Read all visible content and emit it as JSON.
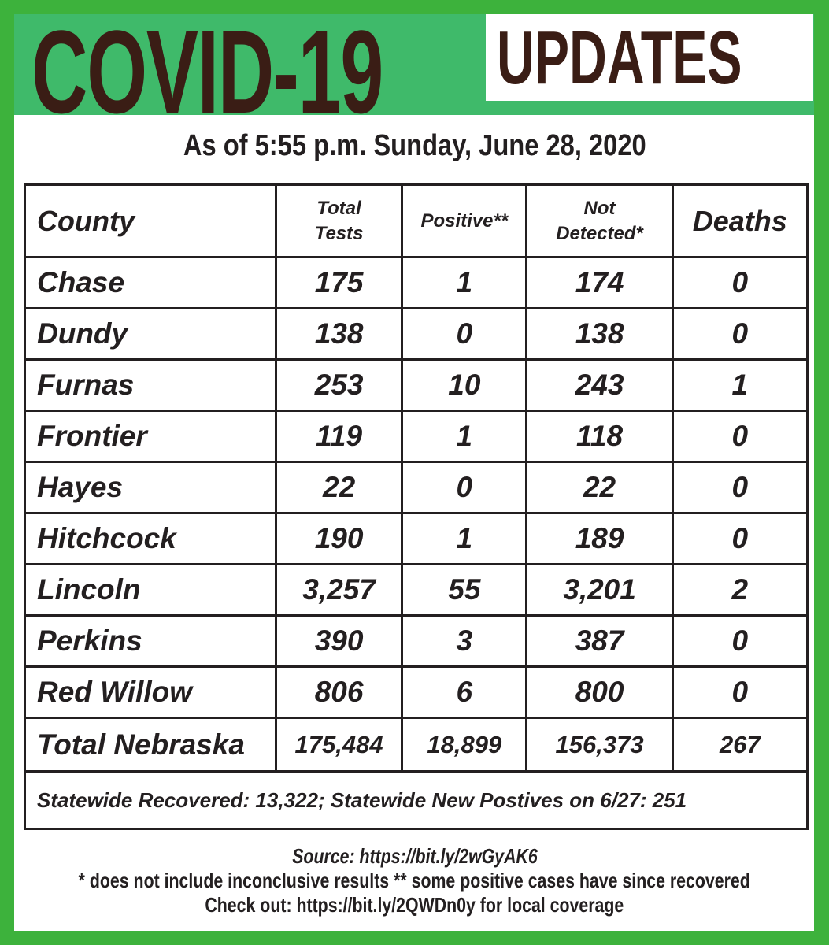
{
  "header": {
    "title": "COVID-19",
    "badge": "UPDATES"
  },
  "subtitle": "As of 5:55 p.m. Sunday, June 28, 2020",
  "colors": {
    "border": "#3db23c",
    "header_band": "#3fba6a",
    "title_text": "#3a1d15"
  },
  "table": {
    "columns": [
      "County",
      "Total Tests",
      "Positive**",
      "Not Detected*",
      "Deaths"
    ],
    "rows": [
      [
        "Chase",
        "175",
        "1",
        "174",
        "0"
      ],
      [
        "Dundy",
        "138",
        "0",
        "138",
        "0"
      ],
      [
        "Furnas",
        "253",
        "10",
        "243",
        "1"
      ],
      [
        "Frontier",
        "119",
        "1",
        "118",
        "0"
      ],
      [
        "Hayes",
        "22",
        "0",
        "22",
        "0"
      ],
      [
        "Hitchcock",
        "190",
        "1",
        "189",
        "0"
      ],
      [
        "Lincoln",
        "3,257",
        "55",
        "3,201",
        "2"
      ],
      [
        "Perkins",
        "390",
        "3",
        "387",
        "0"
      ],
      [
        "Red Willow",
        "806",
        "6",
        "800",
        "0"
      ]
    ],
    "total": [
      "Total Nebraska",
      "175,484",
      "18,899",
      "156,373",
      "267"
    ],
    "footer": "Statewide Recovered: 13,322; Statewide New Postives on 6/27: 251"
  },
  "notes": {
    "source": "Source: https://bit.ly/2wGyAK6",
    "footnotes": "* does not include inconclusive results  ** some positive cases have since recovered",
    "checkout": "Check out: https://bit.ly/2QWDn0y  for local coverage"
  }
}
